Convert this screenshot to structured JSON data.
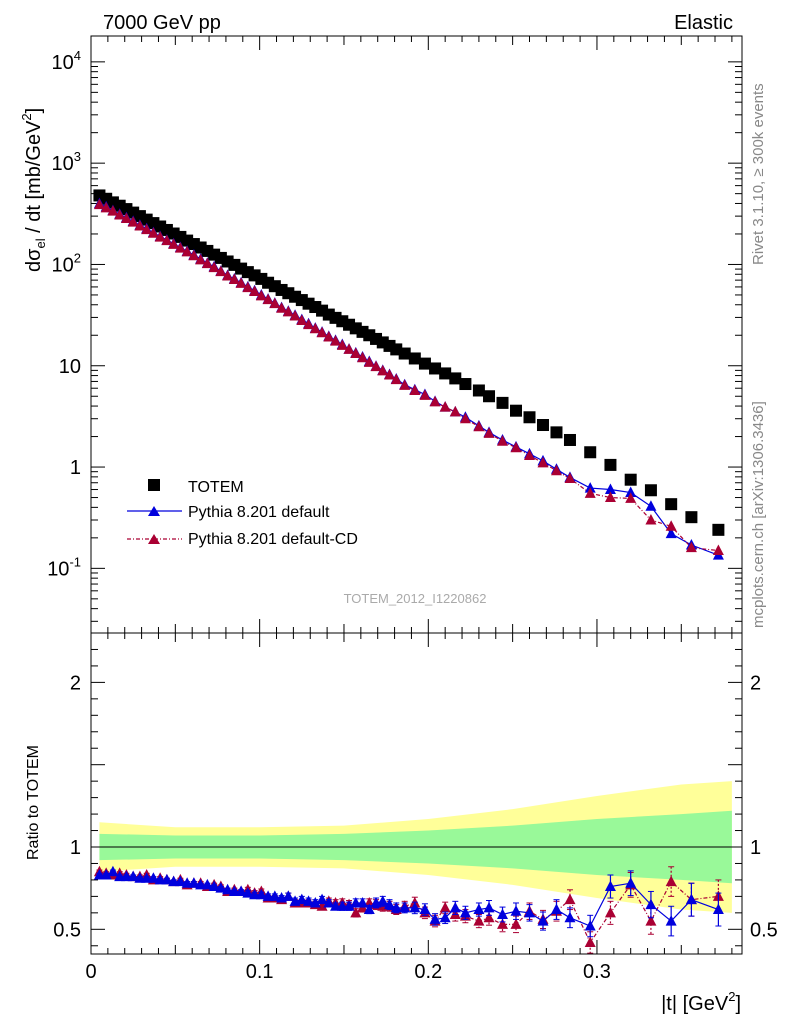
{
  "header": {
    "left_title": "7000 GeV pp",
    "right_title": "Elastic"
  },
  "side_notes": {
    "rivet": "Rivet 3.1.10, ≥ 300k events",
    "mcplots": "mcplots.cern.ch [arXiv:1306.3436]"
  },
  "analysis_id": "TOTEM_2012_I1220862",
  "colors": {
    "totem": "#000000",
    "pythia_default": "#0000dd",
    "pythia_cd": "#aa0033",
    "band_inner": "#99f999",
    "band_outer": "#ffff99"
  },
  "chart_data": [
    {
      "type": "scatter",
      "panel": "main",
      "ylabel": "dσel / dt [mb/GeV2]",
      "ylabel_parts": {
        "pre": "dσ",
        "sub": "el",
        "mid": " / dt [mb/GeV",
        "sup": "2",
        "post": "]"
      },
      "xlim": [
        0,
        0.386
      ],
      "ylim": [
        0.023,
        18000
      ],
      "yscale": "log",
      "ytick_labels": [
        "10^4",
        "10^3",
        "10^2",
        "10",
        "1",
        "10^-1"
      ],
      "legend": {
        "placement": "bottom-left",
        "entries": [
          "TOTEM",
          "Pythia 8.201 default",
          "Pythia 8.201 default-CD"
        ]
      },
      "series": [
        {
          "name": "TOTEM",
          "marker": "square",
          "x": [
            0.005,
            0.009,
            0.013,
            0.017,
            0.021,
            0.025,
            0.029,
            0.033,
            0.037,
            0.041,
            0.045,
            0.049,
            0.053,
            0.057,
            0.061,
            0.065,
            0.069,
            0.073,
            0.077,
            0.081,
            0.085,
            0.089,
            0.093,
            0.097,
            0.101,
            0.105,
            0.109,
            0.113,
            0.117,
            0.121,
            0.125,
            0.129,
            0.133,
            0.137,
            0.141,
            0.145,
            0.149,
            0.153,
            0.157,
            0.161,
            0.165,
            0.169,
            0.173,
            0.177,
            0.181,
            0.186,
            0.192,
            0.198,
            0.204,
            0.21,
            0.216,
            0.222,
            0.23,
            0.236,
            0.244,
            0.252,
            0.26,
            0.268,
            0.276,
            0.284,
            0.296,
            0.308,
            0.32,
            0.332,
            0.344,
            0.356,
            0.372
          ],
          "y": [
            480,
            445,
            410,
            380,
            352,
            325,
            300,
            277,
            256,
            237,
            219,
            202,
            187,
            172,
            159,
            147,
            136,
            125,
            116,
            107,
            99,
            91,
            84,
            78,
            72,
            66,
            61,
            56,
            52,
            48,
            44.5,
            41,
            38,
            35,
            32,
            29.7,
            27.5,
            25.4,
            23.4,
            21.6,
            20,
            18.4,
            17,
            15.7,
            14.5,
            13.2,
            11.8,
            10.5,
            9.4,
            8.4,
            7.5,
            6.6,
            5.7,
            5,
            4.3,
            3.6,
            3.1,
            2.6,
            2.2,
            1.85,
            1.4,
            1.05,
            0.75,
            0.59,
            0.43,
            0.32,
            0.24
          ]
        },
        {
          "name": "Pythia 8.201 default",
          "marker": "triangle",
          "x": [
            0.005,
            0.009,
            0.013,
            0.017,
            0.021,
            0.025,
            0.029,
            0.033,
            0.037,
            0.041,
            0.045,
            0.049,
            0.053,
            0.057,
            0.061,
            0.065,
            0.069,
            0.073,
            0.077,
            0.081,
            0.085,
            0.089,
            0.093,
            0.097,
            0.101,
            0.105,
            0.109,
            0.113,
            0.117,
            0.121,
            0.125,
            0.129,
            0.133,
            0.137,
            0.141,
            0.145,
            0.149,
            0.153,
            0.157,
            0.161,
            0.165,
            0.169,
            0.173,
            0.177,
            0.181,
            0.186,
            0.192,
            0.198,
            0.204,
            0.21,
            0.216,
            0.222,
            0.23,
            0.236,
            0.244,
            0.252,
            0.26,
            0.268,
            0.276,
            0.284,
            0.296,
            0.308,
            0.32,
            0.332,
            0.344,
            0.356,
            0.372
          ],
          "y": [
            398,
            370,
            340,
            313,
            289,
            266,
            244,
            225,
            206,
            189,
            174,
            160,
            147,
            135,
            124,
            113,
            103,
            95,
            86,
            78,
            72,
            66,
            60,
            55,
            50,
            45.5,
            41.5,
            37.5,
            34.5,
            31.5,
            28.5,
            26,
            23.5,
            21.5,
            19.5,
            17.8,
            16.2,
            14.6,
            13.4,
            12.2,
            11,
            9.9,
            9,
            8.2,
            7.4,
            6.5,
            5.8,
            5.2,
            4.45,
            3.9,
            3.5,
            3.1,
            2.55,
            2.2,
            1.85,
            1.58,
            1.35,
            1.15,
            0.95,
            0.79,
            0.62,
            0.6,
            0.56,
            0.41,
            0.22,
            0.17,
            0.135
          ]
        },
        {
          "name": "Pythia 8.201 default-CD",
          "marker": "triangle",
          "x": [
            0.005,
            0.009,
            0.013,
            0.017,
            0.021,
            0.025,
            0.029,
            0.033,
            0.037,
            0.041,
            0.045,
            0.049,
            0.053,
            0.057,
            0.061,
            0.065,
            0.069,
            0.073,
            0.077,
            0.081,
            0.085,
            0.089,
            0.093,
            0.097,
            0.101,
            0.105,
            0.109,
            0.113,
            0.117,
            0.121,
            0.125,
            0.129,
            0.133,
            0.137,
            0.141,
            0.145,
            0.149,
            0.153,
            0.157,
            0.161,
            0.165,
            0.169,
            0.173,
            0.177,
            0.181,
            0.186,
            0.192,
            0.198,
            0.204,
            0.21,
            0.216,
            0.222,
            0.23,
            0.236,
            0.244,
            0.252,
            0.26,
            0.268,
            0.276,
            0.284,
            0.296,
            0.308,
            0.32,
            0.332,
            0.344,
            0.356,
            0.372
          ],
          "y": [
            390,
            362,
            336,
            308,
            284,
            262,
            240,
            221,
            203,
            186,
            172,
            158,
            145,
            133,
            122,
            111,
            102,
            93,
            85,
            77,
            71,
            65,
            59,
            54,
            49,
            45,
            41,
            37,
            34,
            31,
            28,
            25.5,
            23.2,
            21.2,
            19.2,
            17.5,
            15.9,
            14.5,
            13.2,
            12,
            10.8,
            9.8,
            8.9,
            8.1,
            7.3,
            6.4,
            5.7,
            5.1,
            4.4,
            3.9,
            3.5,
            3.0,
            2.5,
            2.15,
            1.8,
            1.55,
            1.3,
            1.1,
            0.92,
            0.77,
            0.55,
            0.5,
            0.49,
            0.3,
            0.26,
            0.16,
            0.15
          ]
        }
      ]
    },
    {
      "type": "scatter",
      "panel": "ratio",
      "ylabel": "Ratio to TOTEM",
      "xlabel": "|t| [GeV2]",
      "xlabel_parts": {
        "pre": "|t| [GeV",
        "sup": "2",
        "post": "]"
      },
      "xlim": [
        0,
        0.386
      ],
      "ylim": [
        0.35,
        2.3
      ],
      "xtick_labels": [
        "0",
        "0.1",
        "0.2",
        "0.3"
      ],
      "ytick_labels": [
        "0.5",
        "1",
        "2"
      ],
      "reference_line": 1,
      "band_x": [
        0.005,
        0.05,
        0.1,
        0.15,
        0.2,
        0.25,
        0.3,
        0.35,
        0.38
      ],
      "band_inner": [
        0.08,
        0.07,
        0.07,
        0.08,
        0.1,
        0.13,
        0.17,
        0.2,
        0.22
      ],
      "band_outer": [
        0.15,
        0.12,
        0.12,
        0.13,
        0.17,
        0.23,
        0.31,
        0.38,
        0.4
      ],
      "series": [
        {
          "name": "Pythia 8.201 default",
          "x": [
            0.005,
            0.009,
            0.013,
            0.017,
            0.021,
            0.025,
            0.029,
            0.033,
            0.037,
            0.041,
            0.045,
            0.049,
            0.053,
            0.057,
            0.061,
            0.065,
            0.069,
            0.073,
            0.077,
            0.081,
            0.085,
            0.089,
            0.093,
            0.097,
            0.101,
            0.105,
            0.109,
            0.113,
            0.117,
            0.121,
            0.125,
            0.129,
            0.133,
            0.137,
            0.141,
            0.145,
            0.149,
            0.153,
            0.157,
            0.161,
            0.165,
            0.169,
            0.173,
            0.177,
            0.181,
            0.186,
            0.192,
            0.198,
            0.204,
            0.21,
            0.216,
            0.222,
            0.23,
            0.236,
            0.244,
            0.252,
            0.26,
            0.268,
            0.276,
            0.284,
            0.296,
            0.308,
            0.32,
            0.332,
            0.344,
            0.356,
            0.372
          ],
          "y": [
            0.83,
            0.83,
            0.85,
            0.82,
            0.82,
            0.82,
            0.81,
            0.81,
            0.81,
            0.8,
            0.8,
            0.79,
            0.79,
            0.78,
            0.78,
            0.77,
            0.77,
            0.76,
            0.75,
            0.74,
            0.73,
            0.73,
            0.72,
            0.71,
            0.71,
            0.7,
            0.7,
            0.69,
            0.7,
            0.67,
            0.68,
            0.67,
            0.66,
            0.68,
            0.66,
            0.64,
            0.64,
            0.64,
            0.66,
            0.66,
            0.62,
            0.66,
            0.67,
            0.65,
            0.63,
            0.63,
            0.63,
            0.62,
            0.56,
            0.57,
            0.63,
            0.6,
            0.62,
            0.63,
            0.59,
            0.61,
            0.6,
            0.55,
            0.62,
            0.57,
            0.52,
            0.76,
            0.78,
            0.65,
            0.55,
            0.68,
            0.62
          ],
          "yerr": [
            0.01,
            0.01,
            0.01,
            0.01,
            0.01,
            0.01,
            0.01,
            0.01,
            0.01,
            0.01,
            0.01,
            0.01,
            0.01,
            0.01,
            0.01,
            0.01,
            0.01,
            0.01,
            0.01,
            0.01,
            0.01,
            0.01,
            0.015,
            0.015,
            0.015,
            0.015,
            0.015,
            0.015,
            0.02,
            0.02,
            0.02,
            0.02,
            0.02,
            0.02,
            0.02,
            0.02,
            0.025,
            0.025,
            0.025,
            0.025,
            0.025,
            0.03,
            0.03,
            0.03,
            0.03,
            0.03,
            0.035,
            0.035,
            0.035,
            0.035,
            0.04,
            0.04,
            0.04,
            0.045,
            0.045,
            0.05,
            0.05,
            0.055,
            0.06,
            0.06,
            0.065,
            0.07,
            0.075,
            0.08,
            0.09,
            0.1,
            0.1
          ]
        },
        {
          "name": "Pythia 8.201 default-CD",
          "x": [
            0.005,
            0.009,
            0.013,
            0.017,
            0.021,
            0.025,
            0.029,
            0.033,
            0.037,
            0.041,
            0.045,
            0.049,
            0.053,
            0.057,
            0.061,
            0.065,
            0.069,
            0.073,
            0.077,
            0.081,
            0.085,
            0.089,
            0.093,
            0.097,
            0.101,
            0.105,
            0.109,
            0.113,
            0.117,
            0.121,
            0.125,
            0.129,
            0.133,
            0.137,
            0.141,
            0.145,
            0.149,
            0.153,
            0.157,
            0.161,
            0.165,
            0.169,
            0.173,
            0.177,
            0.181,
            0.186,
            0.192,
            0.198,
            0.204,
            0.21,
            0.216,
            0.222,
            0.23,
            0.236,
            0.244,
            0.252,
            0.26,
            0.268,
            0.276,
            0.284,
            0.296,
            0.308,
            0.32,
            0.332,
            0.344,
            0.356,
            0.372
          ],
          "y": [
            0.85,
            0.84,
            0.83,
            0.84,
            0.83,
            0.82,
            0.82,
            0.83,
            0.8,
            0.81,
            0.8,
            0.79,
            0.8,
            0.77,
            0.78,
            0.78,
            0.76,
            0.77,
            0.76,
            0.73,
            0.74,
            0.73,
            0.74,
            0.72,
            0.73,
            0.69,
            0.69,
            0.68,
            0.7,
            0.66,
            0.66,
            0.66,
            0.65,
            0.64,
            0.67,
            0.66,
            0.66,
            0.65,
            0.6,
            0.63,
            0.66,
            0.65,
            0.64,
            0.64,
            0.62,
            0.64,
            0.66,
            0.6,
            0.55,
            0.63,
            0.59,
            0.58,
            0.55,
            0.57,
            0.53,
            0.53,
            0.61,
            0.56,
            0.61,
            0.68,
            0.42,
            0.6,
            0.77,
            0.55,
            0.79,
            0.68,
            0.7
          ],
          "yerr": [
            0.01,
            0.01,
            0.01,
            0.01,
            0.01,
            0.01,
            0.01,
            0.01,
            0.01,
            0.01,
            0.01,
            0.01,
            0.01,
            0.01,
            0.01,
            0.01,
            0.01,
            0.01,
            0.01,
            0.01,
            0.01,
            0.01,
            0.015,
            0.015,
            0.015,
            0.015,
            0.015,
            0.015,
            0.02,
            0.02,
            0.02,
            0.02,
            0.02,
            0.02,
            0.02,
            0.02,
            0.025,
            0.025,
            0.025,
            0.025,
            0.025,
            0.03,
            0.03,
            0.03,
            0.03,
            0.03,
            0.035,
            0.035,
            0.035,
            0.035,
            0.04,
            0.04,
            0.04,
            0.045,
            0.045,
            0.05,
            0.05,
            0.055,
            0.06,
            0.06,
            0.065,
            0.07,
            0.075,
            0.08,
            0.09,
            0.1,
            0.1
          ]
        }
      ]
    }
  ]
}
